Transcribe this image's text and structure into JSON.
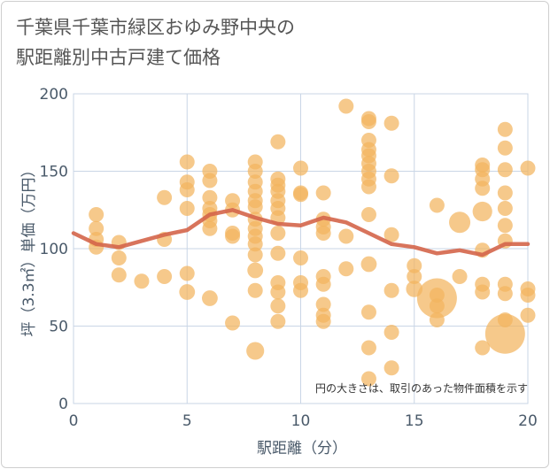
{
  "title_line1": "千葉県千葉市緑区おゆみ野中央の",
  "title_line2": "駅距離別中古戸建て価格",
  "chart_data": {
    "type": "scatter",
    "xlabel": "駅距離（分）",
    "ylabel": "坪（3.3㎡）単価（万円）",
    "xlim": [
      0,
      20
    ],
    "ylim": [
      0,
      200
    ],
    "xticks": [
      0,
      5,
      10,
      15,
      20
    ],
    "yticks": [
      0,
      50,
      100,
      150,
      200
    ],
    "grid": true,
    "note": "円の大きさは、取引のあった物件面積を示す",
    "colors": {
      "bubble": "#f2b45e",
      "line": "#d4654a",
      "grid": "#c9d6e6",
      "axis_text": "#4a5a6a"
    },
    "trend_line": {
      "x": [
        0,
        1,
        2,
        3,
        4,
        5,
        6,
        7,
        8,
        9,
        10,
        11,
        12,
        13,
        14,
        15,
        16,
        17,
        18,
        19,
        20
      ],
      "y": [
        110,
        103,
        101,
        105,
        109,
        112,
        122,
        125,
        120,
        116,
        115,
        120,
        117,
        110,
        103,
        101,
        97,
        99,
        96,
        103,
        103
      ]
    },
    "points": [
      {
        "x": 1,
        "y": 122,
        "s": 1
      },
      {
        "x": 1,
        "y": 113,
        "s": 1
      },
      {
        "x": 1,
        "y": 106,
        "s": 1
      },
      {
        "x": 1,
        "y": 101,
        "s": 1
      },
      {
        "x": 2,
        "y": 104,
        "s": 1
      },
      {
        "x": 2,
        "y": 94,
        "s": 1
      },
      {
        "x": 2,
        "y": 83,
        "s": 1
      },
      {
        "x": 3,
        "y": 79,
        "s": 1
      },
      {
        "x": 4,
        "y": 133,
        "s": 1
      },
      {
        "x": 4,
        "y": 106,
        "s": 1
      },
      {
        "x": 4,
        "y": 82,
        "s": 1
      },
      {
        "x": 5,
        "y": 156,
        "s": 1
      },
      {
        "x": 5,
        "y": 143,
        "s": 1
      },
      {
        "x": 5,
        "y": 138,
        "s": 1
      },
      {
        "x": 5,
        "y": 126,
        "s": 1
      },
      {
        "x": 5,
        "y": 84,
        "s": 1
      },
      {
        "x": 5,
        "y": 72,
        "s": 1.1
      },
      {
        "x": 6,
        "y": 150,
        "s": 1
      },
      {
        "x": 6,
        "y": 144,
        "s": 1
      },
      {
        "x": 6,
        "y": 133,
        "s": 1
      },
      {
        "x": 6,
        "y": 126,
        "s": 1
      },
      {
        "x": 6,
        "y": 122,
        "s": 1
      },
      {
        "x": 6,
        "y": 118,
        "s": 1
      },
      {
        "x": 6,
        "y": 113,
        "s": 1
      },
      {
        "x": 6,
        "y": 68,
        "s": 1.1
      },
      {
        "x": 7,
        "y": 131,
        "s": 1
      },
      {
        "x": 7,
        "y": 125,
        "s": 1
      },
      {
        "x": 7,
        "y": 110,
        "s": 1
      },
      {
        "x": 7,
        "y": 108,
        "s": 1
      },
      {
        "x": 7,
        "y": 52,
        "s": 1
      },
      {
        "x": 8,
        "y": 156,
        "s": 1
      },
      {
        "x": 8,
        "y": 150,
        "s": 1
      },
      {
        "x": 8,
        "y": 143,
        "s": 1
      },
      {
        "x": 8,
        "y": 137,
        "s": 1
      },
      {
        "x": 8,
        "y": 131,
        "s": 1
      },
      {
        "x": 8,
        "y": 127,
        "s": 1
      },
      {
        "x": 8,
        "y": 119,
        "s": 1
      },
      {
        "x": 8,
        "y": 113,
        "s": 1
      },
      {
        "x": 8,
        "y": 108,
        "s": 1
      },
      {
        "x": 8,
        "y": 103,
        "s": 1
      },
      {
        "x": 8,
        "y": 96,
        "s": 1
      },
      {
        "x": 8,
        "y": 86,
        "s": 1.1
      },
      {
        "x": 8,
        "y": 73,
        "s": 1
      },
      {
        "x": 8,
        "y": 34,
        "s": 1.4
      },
      {
        "x": 9,
        "y": 169,
        "s": 1
      },
      {
        "x": 9,
        "y": 145,
        "s": 1
      },
      {
        "x": 9,
        "y": 141,
        "s": 1
      },
      {
        "x": 9,
        "y": 137,
        "s": 1
      },
      {
        "x": 9,
        "y": 131,
        "s": 1
      },
      {
        "x": 9,
        "y": 126,
        "s": 1
      },
      {
        "x": 9,
        "y": 120,
        "s": 1
      },
      {
        "x": 9,
        "y": 110,
        "s": 1
      },
      {
        "x": 9,
        "y": 97,
        "s": 1
      },
      {
        "x": 9,
        "y": 78,
        "s": 1
      },
      {
        "x": 9,
        "y": 72,
        "s": 1
      },
      {
        "x": 9,
        "y": 63,
        "s": 1
      },
      {
        "x": 9,
        "y": 53,
        "s": 1
      },
      {
        "x": 10,
        "y": 152,
        "s": 1
      },
      {
        "x": 10,
        "y": 136,
        "s": 1
      },
      {
        "x": 10,
        "y": 135,
        "s": 1
      },
      {
        "x": 10,
        "y": 94,
        "s": 1
      },
      {
        "x": 10,
        "y": 78,
        "s": 1
      },
      {
        "x": 10,
        "y": 73,
        "s": 1
      },
      {
        "x": 11,
        "y": 136,
        "s": 1
      },
      {
        "x": 11,
        "y": 119,
        "s": 1
      },
      {
        "x": 11,
        "y": 114,
        "s": 1
      },
      {
        "x": 11,
        "y": 110,
        "s": 1
      },
      {
        "x": 11,
        "y": 82,
        "s": 1
      },
      {
        "x": 11,
        "y": 77,
        "s": 1
      },
      {
        "x": 11,
        "y": 64,
        "s": 1
      },
      {
        "x": 11,
        "y": 57,
        "s": 1
      },
      {
        "x": 11,
        "y": 53,
        "s": 1
      },
      {
        "x": 12,
        "y": 192,
        "s": 1
      },
      {
        "x": 12,
        "y": 108,
        "s": 1
      },
      {
        "x": 12,
        "y": 87,
        "s": 1
      },
      {
        "x": 13,
        "y": 184,
        "s": 1
      },
      {
        "x": 13,
        "y": 182,
        "s": 1
      },
      {
        "x": 13,
        "y": 170,
        "s": 1
      },
      {
        "x": 13,
        "y": 164,
        "s": 1
      },
      {
        "x": 13,
        "y": 160,
        "s": 1
      },
      {
        "x": 13,
        "y": 155,
        "s": 1
      },
      {
        "x": 13,
        "y": 150,
        "s": 1
      },
      {
        "x": 13,
        "y": 145,
        "s": 1
      },
      {
        "x": 13,
        "y": 140,
        "s": 1
      },
      {
        "x": 13,
        "y": 122,
        "s": 1
      },
      {
        "x": 13,
        "y": 90,
        "s": 1.1
      },
      {
        "x": 13,
        "y": 59,
        "s": 1
      },
      {
        "x": 13,
        "y": 36,
        "s": 1
      },
      {
        "x": 13,
        "y": 16,
        "s": 1
      },
      {
        "x": 14,
        "y": 181,
        "s": 1
      },
      {
        "x": 14,
        "y": 147,
        "s": 1
      },
      {
        "x": 14,
        "y": 109,
        "s": 1
      },
      {
        "x": 14,
        "y": 73,
        "s": 1
      },
      {
        "x": 14,
        "y": 46,
        "s": 1
      },
      {
        "x": 14,
        "y": 23,
        "s": 1
      },
      {
        "x": 15,
        "y": 89,
        "s": 1
      },
      {
        "x": 15,
        "y": 82,
        "s": 1
      },
      {
        "x": 15,
        "y": 74,
        "s": 1.2
      },
      {
        "x": 16,
        "y": 128,
        "s": 1
      },
      {
        "x": 16,
        "y": 70,
        "s": 1
      },
      {
        "x": 16,
        "y": 63,
        "s": 1
      },
      {
        "x": 16,
        "y": 54,
        "s": 1
      },
      {
        "x": 16,
        "y": 68,
        "s": 7
      },
      {
        "x": 17,
        "y": 117,
        "s": 2
      },
      {
        "x": 17,
        "y": 82,
        "s": 1
      },
      {
        "x": 18,
        "y": 154,
        "s": 1
      },
      {
        "x": 18,
        "y": 151,
        "s": 1
      },
      {
        "x": 18,
        "y": 145,
        "s": 1
      },
      {
        "x": 18,
        "y": 139,
        "s": 1
      },
      {
        "x": 18,
        "y": 124,
        "s": 1.7
      },
      {
        "x": 18,
        "y": 99,
        "s": 1
      },
      {
        "x": 18,
        "y": 77,
        "s": 1
      },
      {
        "x": 18,
        "y": 72,
        "s": 1
      },
      {
        "x": 18,
        "y": 36,
        "s": 1
      },
      {
        "x": 19,
        "y": 177,
        "s": 1
      },
      {
        "x": 19,
        "y": 165,
        "s": 1
      },
      {
        "x": 19,
        "y": 151,
        "s": 1
      },
      {
        "x": 19,
        "y": 136,
        "s": 1
      },
      {
        "x": 19,
        "y": 126,
        "s": 1
      },
      {
        "x": 19,
        "y": 115,
        "s": 1
      },
      {
        "x": 19,
        "y": 105,
        "s": 1
      },
      {
        "x": 19,
        "y": 77,
        "s": 1
      },
      {
        "x": 19,
        "y": 71,
        "s": 1
      },
      {
        "x": 19,
        "y": 54,
        "s": 1
      },
      {
        "x": 19,
        "y": 45,
        "s": 7
      },
      {
        "x": 20,
        "y": 152,
        "s": 1
      },
      {
        "x": 20,
        "y": 74,
        "s": 1
      },
      {
        "x": 20,
        "y": 70,
        "s": 1
      },
      {
        "x": 20,
        "y": 57,
        "s": 1
      }
    ]
  }
}
